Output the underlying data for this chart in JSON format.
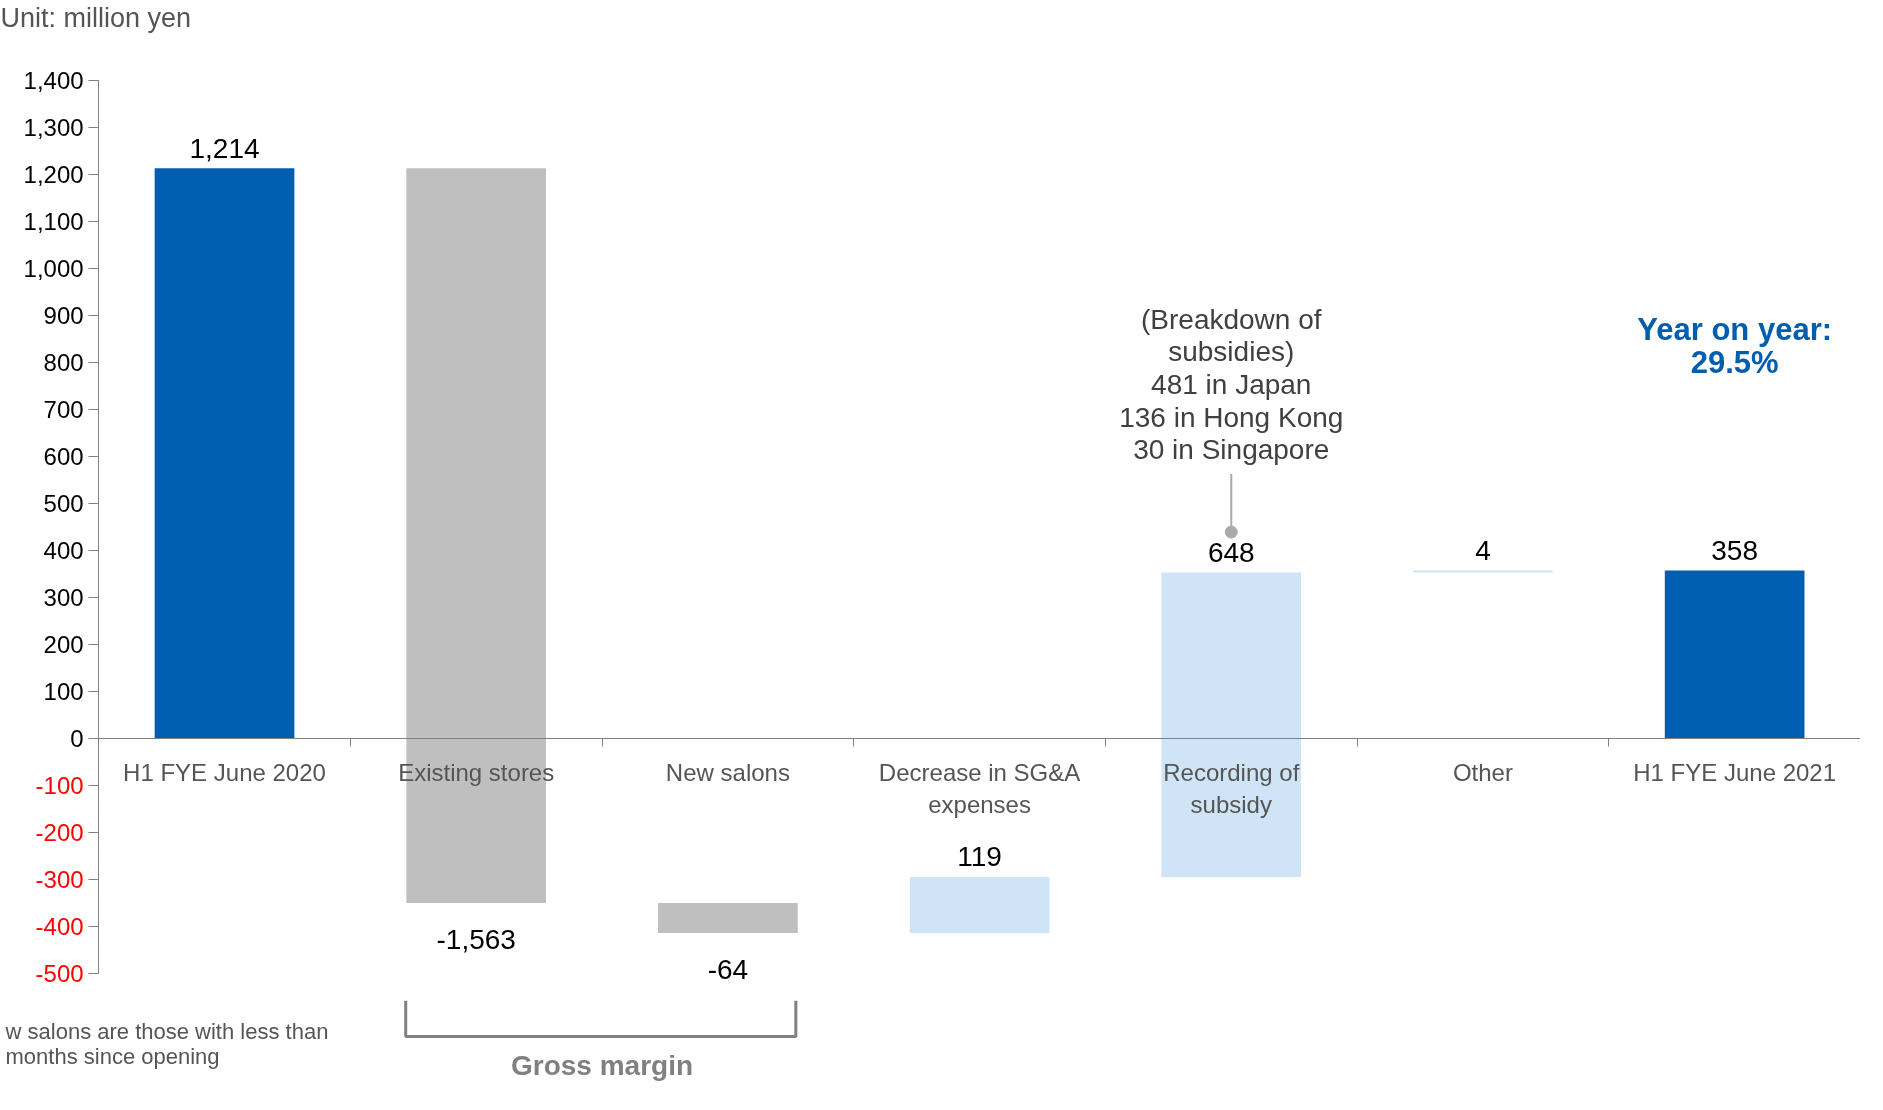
{
  "chart_data": {
    "type": "bar",
    "categories": [
      "H1 FYE June 2020",
      "Existing stores",
      "New salons",
      "Decrease in SG&A expenses",
      "Recording of subsidy",
      "Other",
      "H1 FYE June 2021"
    ],
    "values": [
      1214,
      -1563,
      -64,
      119,
      648,
      4,
      358
    ],
    "base": [
      0,
      1214,
      -349,
      -413,
      -294,
      354,
      0
    ],
    "colors": [
      "#005eb0",
      "#bfbfbf",
      "#bfbfbf",
      "#cfe4f7",
      "#cfe4f7",
      "#cfe4f7",
      "#005eb0"
    ],
    "value_labels": [
      "1,214",
      "-1,563",
      "-64",
      "119",
      "648",
      "4",
      "358"
    ],
    "ylim": [
      -500,
      1400
    ],
    "yticks": [
      {
        "value": -500,
        "label": "-500"
      },
      {
        "value": -400,
        "label": "-400"
      },
      {
        "value": -300,
        "label": "-300"
      },
      {
        "value": -200,
        "label": "-200"
      },
      {
        "value": -100,
        "label": "-100"
      },
      {
        "value": 0,
        "label": "0"
      },
      {
        "value": 100,
        "label": "100"
      },
      {
        "value": 200,
        "label": "200"
      },
      {
        "value": 300,
        "label": "300"
      },
      {
        "value": 400,
        "label": "400"
      },
      {
        "value": 500,
        "label": "500"
      },
      {
        "value": 600,
        "label": "600"
      },
      {
        "value": 700,
        "label": "700"
      },
      {
        "value": 800,
        "label": "800"
      },
      {
        "value": 900,
        "label": "900"
      },
      {
        "value": 1000,
        "label": "1,000"
      },
      {
        "value": 1100,
        "label": "1,100"
      },
      {
        "value": 1200,
        "label": "1,200"
      },
      {
        "value": 1300,
        "label": "1,300"
      },
      {
        "value": 1400,
        "label": "1,400"
      }
    ],
    "annotations": [
      "Unit: million yen",
      {
        "text": "(Breakdown of\nsubsidies)\n481 in Japan\n136 in Hong Kong\n30 in Singapore",
        "x": "Recording of subsidy",
        "y": 440
      },
      "Year on year:\n29.5%",
      "Gross margin",
      "w salons are those with less than\nmonths since opening"
    ]
  }
}
